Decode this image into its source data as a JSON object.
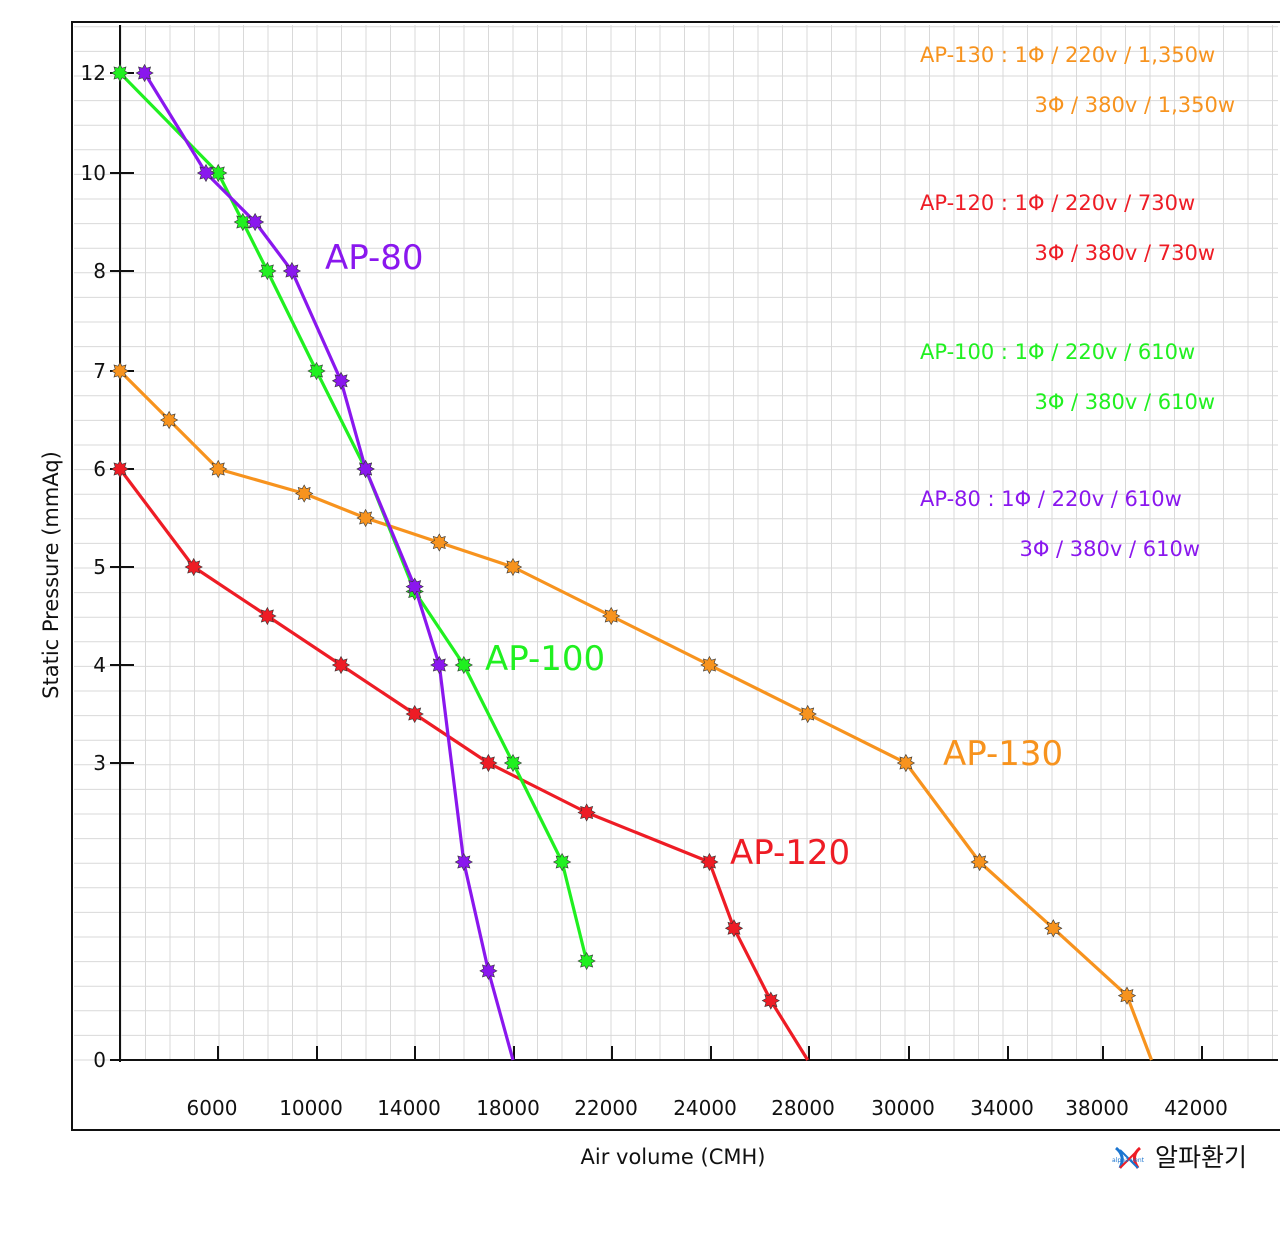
{
  "chart_data": {
    "type": "line",
    "xlabel": "Air volume (CMH)",
    "ylabel": "Static Pressure (mmAq)",
    "x_ticks": [
      "6000",
      "10000",
      "14000",
      "18000",
      "22000",
      "24000",
      "28000",
      "30000",
      "34000",
      "38000",
      "42000"
    ],
    "y_ticks": [
      "0",
      "3",
      "4",
      "5",
      "6",
      "7",
      "8",
      "10",
      "12"
    ],
    "grid": true,
    "series": [
      {
        "name": "AP-130",
        "color": "#f7931e",
        "points": [
          [
            0,
            7
          ],
          [
            2000,
            6.5
          ],
          [
            4000,
            6
          ],
          [
            7500,
            5.75
          ],
          [
            10000,
            5.5
          ],
          [
            13000,
            5.25
          ],
          [
            16000,
            5
          ],
          [
            20000,
            4.5
          ],
          [
            24000,
            4
          ],
          [
            28000,
            3.5
          ],
          [
            32000,
            3
          ],
          [
            35000,
            2
          ],
          [
            38000,
            1.33
          ],
          [
            41000,
            0.65
          ],
          [
            42000,
            0
          ]
        ]
      },
      {
        "name": "AP-120",
        "color": "#ee1c25",
        "points": [
          [
            0,
            6
          ],
          [
            3000,
            5
          ],
          [
            6000,
            4.5
          ],
          [
            9000,
            4
          ],
          [
            12000,
            3.5
          ],
          [
            15000,
            3
          ],
          [
            19000,
            2.5
          ],
          [
            24000,
            2
          ],
          [
            25000,
            1.33
          ],
          [
            26500,
            0.6
          ],
          [
            28000,
            0
          ]
        ]
      },
      {
        "name": "AP-100",
        "color": "#20f020",
        "points": [
          [
            0,
            12
          ],
          [
            4000,
            10
          ],
          [
            5000,
            9
          ],
          [
            6000,
            8
          ],
          [
            8000,
            7
          ],
          [
            10000,
            6
          ],
          [
            12000,
            4.75
          ],
          [
            14000,
            4
          ],
          [
            16000,
            3
          ],
          [
            18000,
            2
          ],
          [
            19000,
            1
          ]
        ]
      },
      {
        "name": "AP-80",
        "color": "#8a17ee",
        "points": [
          [
            1000,
            12
          ],
          [
            3500,
            10
          ],
          [
            5500,
            9
          ],
          [
            7000,
            8
          ],
          [
            9000,
            6.9
          ],
          [
            10000,
            6
          ],
          [
            12000,
            4.8
          ],
          [
            13000,
            4
          ],
          [
            14000,
            2
          ],
          [
            15000,
            0.9
          ],
          [
            16000,
            0
          ]
        ]
      }
    ],
    "specs": [
      {
        "line1": "AP-130 : 1Φ / 220v / 1,350w",
        "line2": "3Φ / 380v / 1,350w"
      },
      {
        "line1": "AP-120 : 1Φ / 220v / 730w",
        "line2": "3Φ / 380v / 730w"
      },
      {
        "line1": "AP-100 : 1Φ / 220v / 610w",
        "line2": "3Φ / 380v / 610w"
      },
      {
        "line1": "AP-80 : 1Φ / 220v / 610w",
        "line2": "3Φ / 380v / 610w"
      }
    ]
  },
  "logo": {
    "small_text": "alpha vent",
    "text": "알파환기"
  }
}
